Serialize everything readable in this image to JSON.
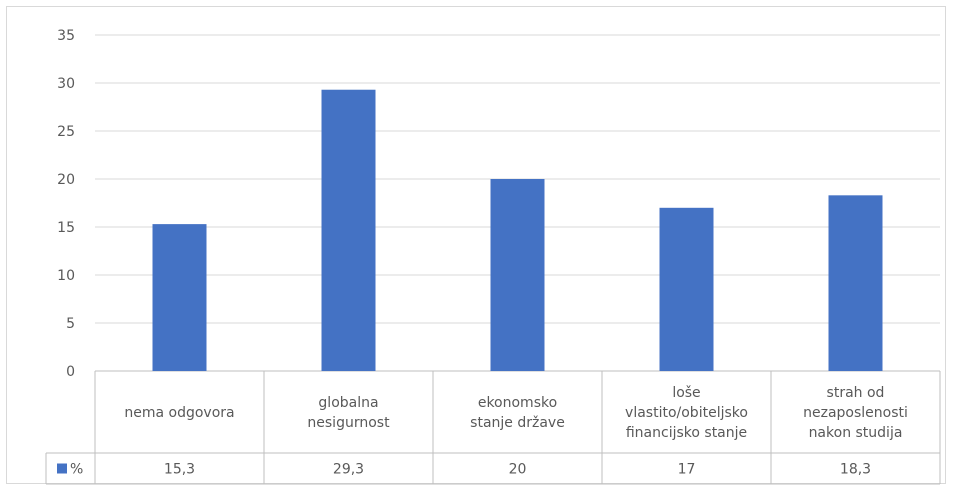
{
  "chart_data": {
    "type": "bar",
    "categories": [
      [
        "nema odgovora"
      ],
      [
        "globalna",
        "nesigurnost"
      ],
      [
        "ekonomsko",
        "stanje države"
      ],
      [
        "loše",
        "vlastito/obiteljsko",
        "financijsko stanje"
      ],
      [
        "strah od",
        "nezaposlenosti",
        "nakon studija"
      ]
    ],
    "series": [
      {
        "name": "%",
        "values": [
          15.3,
          29.3,
          20,
          17,
          18.3
        ],
        "value_labels": [
          "15,3",
          "29,3",
          "20",
          "17",
          "18,3"
        ],
        "color": "#4472c4"
      }
    ],
    "yticks": [
      "0",
      "5",
      "10",
      "15",
      "20",
      "25",
      "30",
      "35"
    ],
    "ylim": [
      0,
      35
    ],
    "grid": true,
    "data_table": true,
    "title": "",
    "xlabel": "",
    "ylabel": ""
  }
}
